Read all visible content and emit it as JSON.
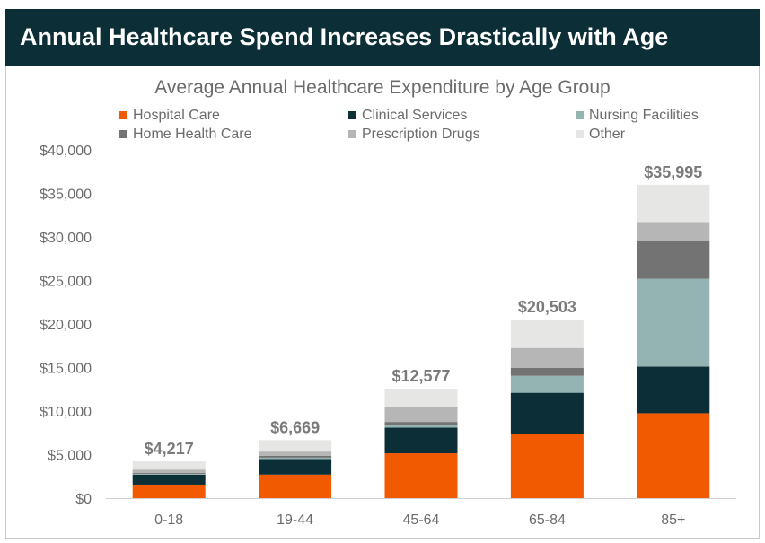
{
  "header": {
    "title": "Annual Healthcare Spend Increases Drastically with Age"
  },
  "chart_data": {
    "type": "bar",
    "stacked": true,
    "title": "Average Annual Healthcare Expenditure by Age Group",
    "xlabel": "",
    "ylabel": "",
    "categories": [
      "0-18",
      "19-44",
      "45-64",
      "65-84",
      "85+"
    ],
    "ylim": [
      0,
      40000
    ],
    "yticks": [
      "$0",
      "$5,000",
      "$10,000",
      "$15,000",
      "$20,000",
      "$25,000",
      "$30,000",
      "$35,000",
      "$40,000"
    ],
    "ytick_values": [
      0,
      5000,
      10000,
      15000,
      20000,
      25000,
      30000,
      35000,
      40000
    ],
    "totals": [
      4217,
      6669,
      12577,
      20503,
      35995
    ],
    "total_labels": [
      "$4,217",
      "$6,669",
      "$12,577",
      "$20,503",
      "$35,995"
    ],
    "legend_position": "top",
    "gridlines": false,
    "series": [
      {
        "name": "Hospital Care",
        "color": "#f15a00",
        "values": [
          1550,
          2700,
          5150,
          7350,
          9750
        ]
      },
      {
        "name": "Clinical Services",
        "color": "#0c2e36",
        "values": [
          1150,
          1800,
          2950,
          4750,
          5350
        ]
      },
      {
        "name": "Nursing Facilities",
        "color": "#94b3b3",
        "values": [
          80,
          150,
          300,
          1950,
          10100
        ]
      },
      {
        "name": "Home Health Care",
        "color": "#737373",
        "values": [
          100,
          200,
          350,
          900,
          4300
        ]
      },
      {
        "name": "Prescription Drugs",
        "color": "#b6b6b6",
        "values": [
          400,
          500,
          1700,
          2300,
          2200
        ]
      },
      {
        "name": "Other",
        "color": "#e6e6e4",
        "values": [
          937,
          1319,
          2127,
          3253,
          4295
        ]
      }
    ]
  }
}
